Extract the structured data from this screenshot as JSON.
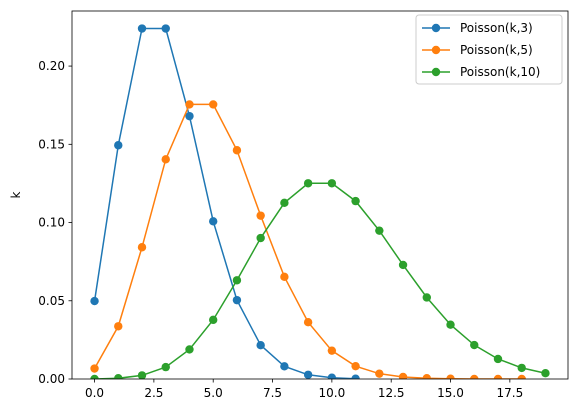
{
  "chart_data": {
    "type": "line",
    "title": "",
    "xlabel": "",
    "ylabel": "k",
    "xlim": [
      -0.95,
      19.95
    ],
    "ylim": [
      0,
      0.2352
    ],
    "xticks": [
      0.0,
      2.5,
      5.0,
      7.5,
      10.0,
      12.5,
      15.0,
      17.5
    ],
    "xtick_labels": [
      "0.0",
      "2.5",
      "5.0",
      "7.5",
      "10.0",
      "12.5",
      "15.0",
      "17.5"
    ],
    "yticks": [
      0.0,
      0.05,
      0.1,
      0.15,
      0.2
    ],
    "ytick_labels": [
      "0.00",
      "0.05",
      "0.10",
      "0.15",
      "0.20"
    ],
    "grid": false,
    "legend_position": "top-right",
    "x": [
      0,
      1,
      2,
      3,
      4,
      5,
      6,
      7,
      8,
      9,
      10,
      11,
      12,
      13,
      14,
      15,
      16,
      17,
      18,
      19
    ],
    "series": [
      {
        "name": "Poisson(k,3)",
        "color": "#1f77b4",
        "x": [
          0,
          1,
          2,
          3,
          4,
          5,
          6,
          7,
          8,
          9,
          10,
          11
        ],
        "values": [
          0.0498,
          0.1494,
          0.224,
          0.224,
          0.168,
          0.1008,
          0.0504,
          0.0216,
          0.0081,
          0.0027,
          0.0008,
          0.0002
        ]
      },
      {
        "name": "Poisson(k,5)",
        "color": "#ff7f0e",
        "x": [
          0,
          1,
          2,
          3,
          4,
          5,
          6,
          7,
          8,
          9,
          10,
          11,
          12,
          13,
          14,
          15,
          16,
          17,
          18
        ],
        "values": [
          0.0067,
          0.0337,
          0.0842,
          0.1404,
          0.1755,
          0.1755,
          0.1462,
          0.1044,
          0.0653,
          0.0363,
          0.0181,
          0.0082,
          0.0034,
          0.0013,
          0.0005,
          0.0002,
          0.0,
          0.0,
          0.0
        ]
      },
      {
        "name": "Poisson(k,10)",
        "color": "#2ca02c",
        "x": [
          0,
          1,
          2,
          3,
          4,
          5,
          6,
          7,
          8,
          9,
          10,
          11,
          12,
          13,
          14,
          15,
          16,
          17,
          18,
          19
        ],
        "values": [
          0.0,
          0.0005,
          0.0023,
          0.0076,
          0.0189,
          0.0378,
          0.0631,
          0.0901,
          0.1126,
          0.1251,
          0.1251,
          0.1137,
          0.0948,
          0.0729,
          0.0521,
          0.0347,
          0.0217,
          0.0128,
          0.0071,
          0.0037
        ]
      }
    ]
  }
}
